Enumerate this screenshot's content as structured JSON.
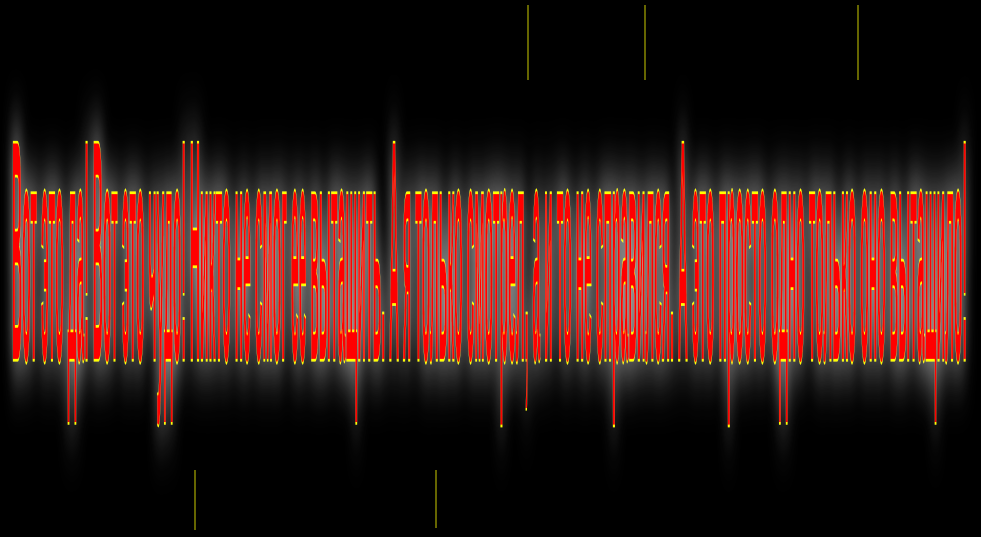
{
  "slide": {
    "title": "Вот это да! Вот это чудо! Никто не смог ее вытащить. А я только смотрел, а и то не справился. А это просто одно только оно вытащило!"
  },
  "colors": {
    "background": "#000000",
    "text_fill": "#ff0000",
    "text_outline": "#ffff00",
    "glow": "#ffffff"
  }
}
